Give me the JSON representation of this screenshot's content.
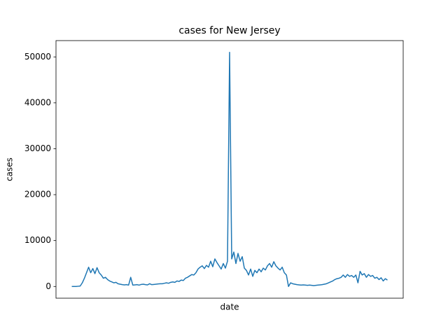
{
  "chart_data": {
    "type": "line",
    "title": "cases for New Jersey",
    "xlabel": "date",
    "ylabel": "cases",
    "series": [
      {
        "name": "cases",
        "color": "#1f77b4",
        "values": [
          0,
          0,
          0,
          50,
          100,
          800,
          1800,
          3000,
          4200,
          3000,
          3900,
          2800,
          4100,
          3000,
          2500,
          1800,
          2000,
          1500,
          1200,
          1000,
          800,
          900,
          600,
          500,
          400,
          350,
          400,
          300,
          2000,
          300,
          350,
          400,
          300,
          450,
          500,
          400,
          350,
          600,
          400,
          450,
          500,
          550,
          600,
          600,
          700,
          800,
          700,
          900,
          1000,
          900,
          1200,
          1100,
          1400,
          1300,
          1800,
          2000,
          2300,
          2600,
          2500,
          3000,
          3800,
          4200,
          4500,
          3900,
          4600,
          4200,
          5500,
          4300,
          6000,
          5200,
          4500,
          3800,
          5000,
          4000,
          5500,
          51000,
          6000,
          7500,
          5000,
          7200,
          5500,
          6500,
          4000,
          3500,
          2500,
          3800,
          2200,
          3500,
          3000,
          3800,
          3200,
          4000,
          3600,
          4500,
          5000,
          4200,
          5400,
          4500,
          4000,
          3600,
          4200,
          3000,
          2500,
          0,
          800,
          600,
          500,
          400,
          350,
          300,
          350,
          300,
          250,
          300,
          250,
          200,
          250,
          300,
          350,
          400,
          500,
          600,
          800,
          1000,
          1200,
          1500,
          1700,
          1800,
          2000,
          2500,
          2000,
          2600,
          2200,
          2400,
          2000,
          2500,
          800,
          3300,
          2500,
          2800,
          2000,
          2600,
          2200,
          2400,
          1800,
          2000,
          1500,
          1900,
          1200,
          1700,
          1400
        ]
      }
    ],
    "ylim": [
      -2550,
      53550
    ],
    "yticks": [
      0,
      10000,
      20000,
      30000,
      40000,
      50000
    ]
  }
}
